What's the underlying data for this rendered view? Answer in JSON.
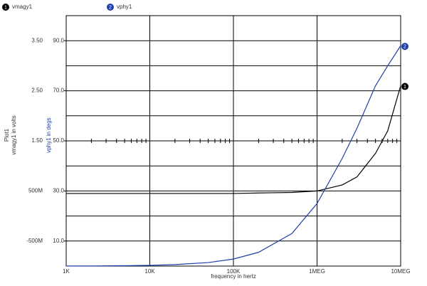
{
  "chart_data": {
    "type": "line",
    "x_label": "frequency in hertz",
    "plot_label": "Plot1",
    "y_label": "vmagy1 in volts",
    "y2_label": "vphy1 in degs",
    "x": [
      1000,
      2000,
      5000,
      10000,
      20000,
      50000,
      100000,
      200000,
      500000,
      1000000,
      2000000,
      3000000,
      5000000,
      7000000,
      10000000
    ],
    "series": [
      {
        "name": "vmagy1",
        "marker": "1",
        "color": "#000000",
        "values": [
          0.45,
          0.45,
          0.45,
          0.45,
          0.45,
          0.45,
          0.45,
          0.46,
          0.47,
          0.5,
          0.62,
          0.78,
          1.25,
          1.7,
          2.6
        ]
      },
      {
        "name": "vphy1",
        "marker": "2",
        "color": "#1f3fa8",
        "axis": "y2",
        "values": [
          0.03,
          0.06,
          0.15,
          0.3,
          0.6,
          1.4,
          2.8,
          5.5,
          13,
          25,
          43,
          55,
          72,
          80,
          88
        ]
      }
    ],
    "x_log": true,
    "xlim": [
      1000,
      10000000
    ],
    "xticks": [
      {
        "value": 1000,
        "label": "1K"
      },
      {
        "value": 10000,
        "label": "10K"
      },
      {
        "value": 100000,
        "label": "100K"
      },
      {
        "value": 1000000,
        "label": "1MEG"
      },
      {
        "value": 10000000,
        "label": "10MEG"
      }
    ],
    "ylim": [
      -1,
      4
    ],
    "yticks": [
      {
        "value": 3.5,
        "label": "3.50"
      },
      {
        "value": 2.5,
        "label": "2.50"
      },
      {
        "value": 1.5,
        "label": "1.50"
      },
      {
        "value": 0.5,
        "label": "500M"
      },
      {
        "value": -0.5,
        "label": "-500M"
      }
    ],
    "y_minor_grid": [
      3,
      2,
      1,
      0
    ],
    "y2lim": [
      0,
      100
    ],
    "y2ticks": [
      {
        "value": 90,
        "label": "90.0"
      },
      {
        "value": 70,
        "label": "70.0"
      },
      {
        "value": 50,
        "label": "50.0"
      },
      {
        "value": 30,
        "label": "30.0"
      },
      {
        "value": 10,
        "label": "10.0"
      }
    ],
    "grid": true
  }
}
